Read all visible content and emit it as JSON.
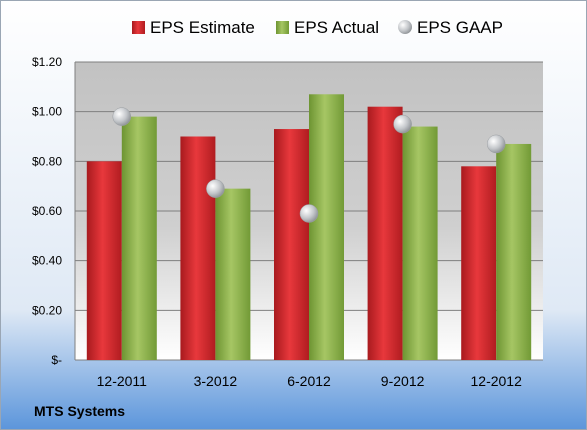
{
  "company": "MTS Systems",
  "chart_data": {
    "type": "bar",
    "categories": [
      "12-2011",
      "3-2012",
      "6-2012",
      "9-2012",
      "12-2012"
    ],
    "series": [
      {
        "name": "EPS Estimate",
        "type": "bar",
        "color": "#d42428",
        "values": [
          0.8,
          0.9,
          0.93,
          1.02,
          0.78
        ]
      },
      {
        "name": "EPS Actual",
        "type": "bar",
        "color": "#8db24a",
        "values": [
          0.98,
          0.69,
          1.07,
          0.94,
          0.87
        ]
      },
      {
        "name": "EPS GAAP",
        "type": "scatter",
        "color": "#c0c4c8",
        "values": [
          0.98,
          0.69,
          0.59,
          0.95,
          0.87
        ]
      }
    ],
    "ylim": [
      0,
      1.2
    ],
    "yticks": [
      0,
      0.2,
      0.4,
      0.6,
      0.8,
      1.0,
      1.2
    ],
    "ytick_labels": [
      "$-",
      "$0.20",
      "$0.40",
      "$0.60",
      "$0.80",
      "$1.00",
      "$1.20"
    ],
    "grid": true,
    "legend": "top"
  }
}
